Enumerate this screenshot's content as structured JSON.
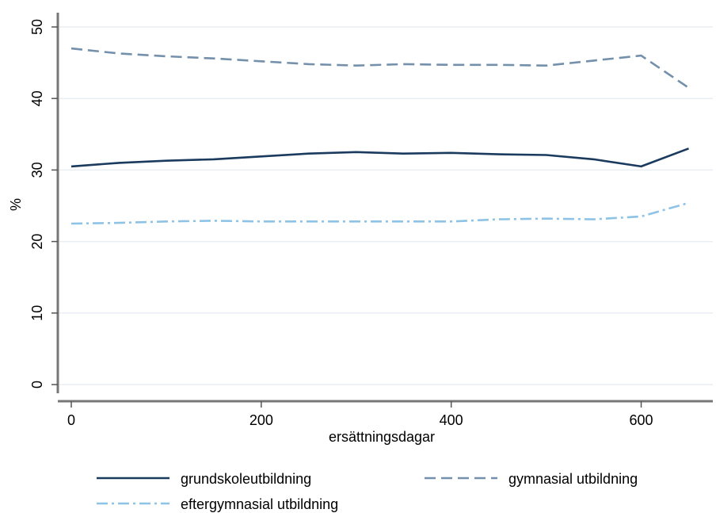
{
  "chart_data": {
    "type": "line",
    "title": "",
    "xlabel": "ersättningsdagar",
    "ylabel": "%",
    "xlim": [
      -10,
      652
    ],
    "ylim": [
      -2,
      52
    ],
    "x_ticks": [
      0,
      200,
      400,
      600
    ],
    "y_ticks": [
      0,
      10,
      20,
      30,
      40,
      50
    ],
    "x_tick_labels": [
      "0",
      "200",
      "400",
      "600"
    ],
    "y_tick_labels": [
      "0",
      "10",
      "20",
      "30",
      "40",
      "50"
    ],
    "grid": true,
    "legend_position": "bottom",
    "x": [
      0,
      50,
      100,
      150,
      200,
      250,
      300,
      350,
      400,
      450,
      500,
      550,
      600,
      650
    ],
    "series": [
      {
        "name": "grundskoleutbildning",
        "color": "#1a3a5e",
        "dash": "solid",
        "values": [
          30.5,
          31.0,
          31.3,
          31.5,
          31.9,
          32.3,
          32.5,
          32.3,
          32.4,
          32.2,
          32.1,
          31.5,
          30.5,
          33.0
        ]
      },
      {
        "name": "gymnasial utbildning",
        "color": "#7490ab",
        "dash": "dashed",
        "values": [
          47.0,
          46.3,
          45.9,
          45.6,
          45.2,
          44.8,
          44.6,
          44.8,
          44.7,
          44.7,
          44.6,
          45.3,
          46.0,
          41.5
        ]
      },
      {
        "name": "eftergymnasial utbildning",
        "color": "#8ec3e6",
        "dash": "dashdot",
        "values": [
          22.5,
          22.6,
          22.8,
          22.9,
          22.8,
          22.8,
          22.8,
          22.8,
          22.8,
          23.1,
          23.2,
          23.1,
          23.5,
          25.4
        ]
      }
    ]
  }
}
